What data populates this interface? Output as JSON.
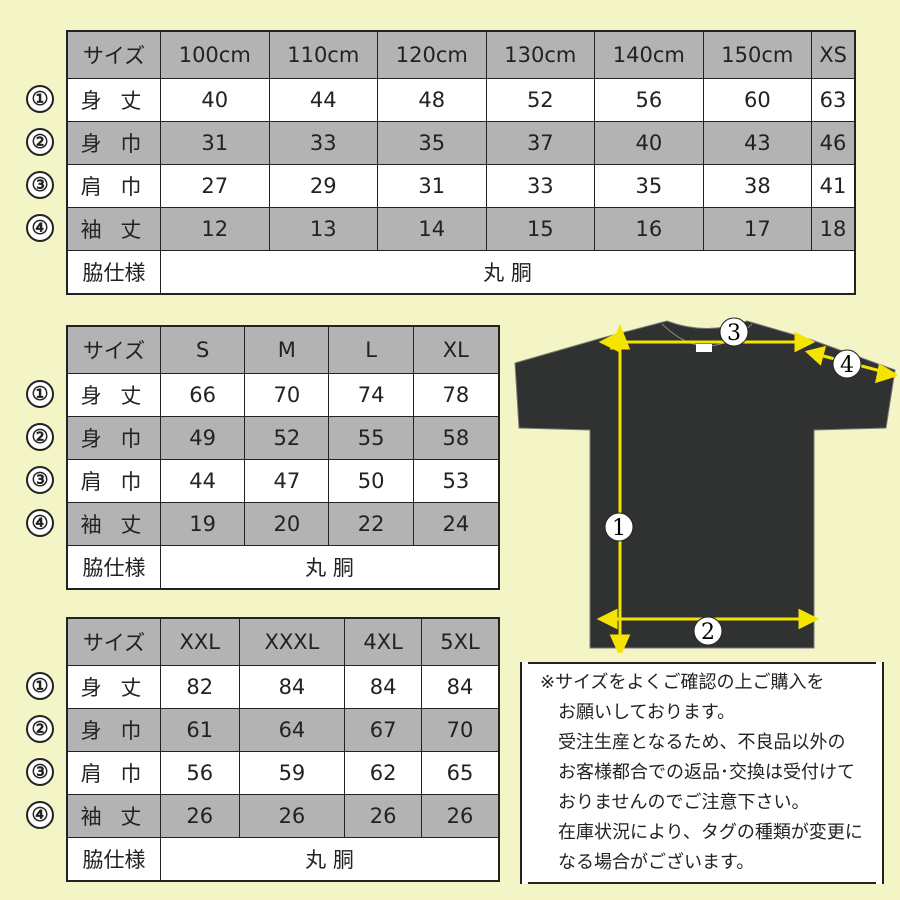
{
  "colors": {
    "background": "#f4f5c6",
    "header_gray": "#b3b3b3",
    "arrow": "#f5e400",
    "shirt": "#2f3231"
  },
  "circled_numbers": [
    "①",
    "②",
    "③",
    "④"
  ],
  "tables": [
    {
      "header": [
        "サイズ",
        "100cm",
        "110cm",
        "120cm",
        "130cm",
        "140cm",
        "150cm",
        "XS"
      ],
      "rows": [
        {
          "num": "①",
          "label": "身 丈",
          "values": [
            "40",
            "44",
            "48",
            "52",
            "56",
            "60",
            "63"
          ]
        },
        {
          "num": "②",
          "label": "身 巾",
          "values": [
            "31",
            "33",
            "35",
            "37",
            "40",
            "43",
            "46"
          ]
        },
        {
          "num": "③",
          "label": "肩 巾",
          "values": [
            "27",
            "29",
            "31",
            "33",
            "35",
            "38",
            "41"
          ]
        },
        {
          "num": "④",
          "label": "袖 丈",
          "values": [
            "12",
            "13",
            "14",
            "15",
            "16",
            "17",
            "18"
          ]
        }
      ],
      "side": {
        "label": "脇仕様",
        "value": "丸 胴"
      }
    },
    {
      "header": [
        "サイズ",
        "S",
        "M",
        "L",
        "XL"
      ],
      "rows": [
        {
          "num": "①",
          "label": "身 丈",
          "values": [
            "66",
            "70",
            "74",
            "78"
          ]
        },
        {
          "num": "②",
          "label": "身 巾",
          "values": [
            "49",
            "52",
            "55",
            "58"
          ]
        },
        {
          "num": "③",
          "label": "肩 巾",
          "values": [
            "44",
            "47",
            "50",
            "53"
          ]
        },
        {
          "num": "④",
          "label": "袖 丈",
          "values": [
            "19",
            "20",
            "22",
            "24"
          ]
        }
      ],
      "side": {
        "label": "脇仕様",
        "value": "丸 胴"
      }
    },
    {
      "header": [
        "サイズ",
        "XXL",
        "XXXL",
        "4XL",
        "5XL"
      ],
      "rows": [
        {
          "num": "①",
          "label": "身 丈",
          "values": [
            "82",
            "84",
            "84",
            "84"
          ]
        },
        {
          "num": "②",
          "label": "身 巾",
          "values": [
            "61",
            "64",
            "67",
            "70"
          ]
        },
        {
          "num": "③",
          "label": "肩 巾",
          "values": [
            "56",
            "59",
            "62",
            "65"
          ]
        },
        {
          "num": "④",
          "label": "袖 丈",
          "values": [
            "26",
            "26",
            "26",
            "26"
          ]
        }
      ],
      "side": {
        "label": "脇仕様",
        "value": "丸 胴"
      }
    }
  ],
  "diagram": {
    "labels": [
      "1",
      "2",
      "3",
      "4"
    ]
  },
  "notice": {
    "lines": [
      "※サイズをよくご確認の上ご購入を",
      "お願いしております。",
      "受注生産となるため、不良品以外の",
      "お客様都合での返品･交換は受付けて",
      "おりませんのでご注意下さい。",
      "在庫状況により、タグの種類が変更に",
      "なる場合がございます。"
    ]
  }
}
